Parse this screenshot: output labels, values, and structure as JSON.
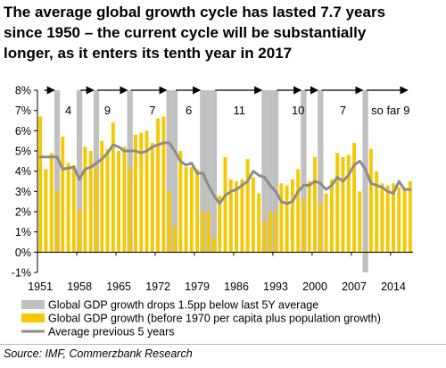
{
  "title_lines": [
    "The average global growth cycle has lasted 7.7 years",
    "since 1950 – the current cycle will be substantially",
    "longer, as it enters its tenth year in 2017"
  ],
  "source": "Source: IMF, Commerzbank Research",
  "colors": {
    "gdp_bar": "#f5c800",
    "recession_bar": "#c0c0c0",
    "average_line": "#8c8c8c"
  },
  "chart_data": {
    "type": "bar",
    "years": [
      1951,
      1952,
      1953,
      1954,
      1955,
      1956,
      1957,
      1958,
      1959,
      1960,
      1961,
      1962,
      1963,
      1964,
      1965,
      1966,
      1967,
      1968,
      1969,
      1970,
      1971,
      1972,
      1973,
      1974,
      1975,
      1976,
      1977,
      1978,
      1979,
      1980,
      1981,
      1982,
      1983,
      1984,
      1985,
      1986,
      1987,
      1988,
      1989,
      1990,
      1991,
      1992,
      1993,
      1994,
      1995,
      1996,
      1997,
      1998,
      1999,
      2000,
      2001,
      2002,
      2003,
      2004,
      2005,
      2006,
      2007,
      2008,
      2009,
      2010,
      2011,
      2012,
      2013,
      2014,
      2015,
      2016,
      2017
    ],
    "x_tick_labels": [
      "1951",
      "1958",
      "1965",
      "1972",
      "1979",
      "1986",
      "1993",
      "2000",
      "2007",
      "2014"
    ],
    "y_tick_labels": [
      "-1%",
      "0%",
      "1%",
      "2%",
      "3%",
      "4%",
      "5%",
      "6%",
      "7%",
      "8%"
    ],
    "ylim": [
      -1,
      8
    ],
    "series": [
      {
        "name": "Global GDP growth drops 1.5pp below last 5Y average",
        "kind": "bar",
        "years": [
          1954,
          1958,
          1961,
          1967,
          1974,
          1975,
          1980,
          1981,
          1982,
          1991,
          1992,
          1993,
          1998,
          2001,
          2009
        ],
        "values": [
          8,
          8,
          8,
          8,
          8,
          8,
          8,
          8,
          8,
          8,
          8,
          8,
          8,
          8,
          8
        ],
        "negative_years": [
          2009
        ]
      },
      {
        "name": "Global GDP growth (before 1970 per capita plus population growth)",
        "kind": "bar",
        "values": [
          6.7,
          4.1,
          4.9,
          3.0,
          5.7,
          4.4,
          4.3,
          2.1,
          5.2,
          5.0,
          4.2,
          5.5,
          5.1,
          6.4,
          5.0,
          5.2,
          4.2,
          5.8,
          5.9,
          6.0,
          5.4,
          6.6,
          6.7,
          3.0,
          1.3,
          5.0,
          4.2,
          4.2,
          4.1,
          2.0,
          2.0,
          0.7,
          2.8,
          4.7,
          3.6,
          3.5,
          3.6,
          4.6,
          3.7,
          2.9,
          1.5,
          2.0,
          2.0,
          3.4,
          3.3,
          3.6,
          4.1,
          2.6,
          3.5,
          4.7,
          2.4,
          2.9,
          3.6,
          4.9,
          4.7,
          4.8,
          5.4,
          3.0,
          -0.1,
          5.1,
          4.0,
          3.4,
          3.3,
          3.4,
          3.2,
          3.1,
          3.5
        ]
      },
      {
        "name": "Average previous 5 years",
        "kind": "line",
        "x": [
          1951,
          1954,
          1955,
          1957,
          1958,
          1959,
          1960,
          1962,
          1963,
          1964,
          1965,
          1966,
          1968,
          1969,
          1970,
          1971,
          1972,
          1973,
          1974,
          1975,
          1976,
          1977,
          1978,
          1979,
          1980,
          1981,
          1982,
          1983,
          1984,
          1985,
          1986,
          1987,
          1988,
          1989,
          1990,
          1991,
          1992,
          1993,
          1994,
          1995,
          1996,
          1997,
          1998,
          1999,
          2000,
          2001,
          2002,
          2003,
          2004,
          2005,
          2006,
          2007,
          2008,
          2009,
          2010,
          2011,
          2012,
          2013,
          2014,
          2015,
          2016,
          2017
        ],
        "values": [
          4.7,
          4.7,
          4.1,
          4.2,
          3.6,
          4.1,
          4.2,
          4.6,
          4.9,
          5.3,
          5.2,
          5.0,
          5.0,
          4.9,
          5.0,
          5.2,
          5.3,
          5.4,
          5.4,
          5.0,
          4.5,
          4.3,
          4.4,
          3.9,
          3.9,
          3.3,
          2.8,
          2.4,
          2.8,
          3.0,
          3.1,
          3.3,
          3.5,
          4.0,
          3.8,
          3.7,
          3.3,
          3.0,
          2.5,
          2.4,
          2.5,
          3.0,
          3.3,
          3.3,
          3.5,
          3.4,
          3.1,
          3.3,
          3.7,
          3.5,
          3.8,
          4.3,
          4.5,
          4.1,
          3.4,
          3.3,
          3.2,
          3.0,
          2.9,
          3.5,
          3.1,
          3.1
        ]
      }
    ],
    "cycle_labels": [
      {
        "text": "4",
        "year": 1956
      },
      {
        "text": "9",
        "year": 1963
      },
      {
        "text": "7",
        "year": 1971
      },
      {
        "text": "6",
        "year": 1977.5
      },
      {
        "text": "11",
        "year": 1986.5
      },
      {
        "text": "10",
        "year": 1997
      },
      {
        "text": "7",
        "year": 2005
      },
      {
        "text": "so far 9",
        "year": 2013.5
      }
    ],
    "cycle_arrows": [
      {
        "from": 1952,
        "to": 1954
      },
      {
        "from": 1958.5,
        "to": 1961
      },
      {
        "from": 1961.5,
        "to": 1967
      },
      {
        "from": 1967.5,
        "to": 1974
      },
      {
        "from": 1975.5,
        "to": 1980
      },
      {
        "from": 1982.5,
        "to": 1991
      },
      {
        "from": 1993.5,
        "to": 1998
      },
      {
        "from": 1998.5,
        "to": 2001
      },
      {
        "from": 2001.5,
        "to": 2009
      },
      {
        "from": 2009.5,
        "to": 2017
      }
    ],
    "grid": false
  }
}
